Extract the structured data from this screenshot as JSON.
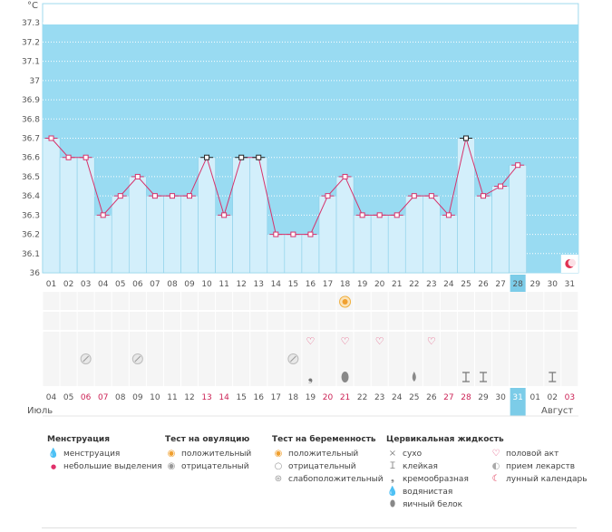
{
  "chart_data": {
    "type": "line",
    "unit_label": "°C",
    "ylim": [
      36,
      37.4
    ],
    "y_ticks": [
      "37.3",
      "37.2",
      "37.1",
      "37",
      "36.9",
      "36.8",
      "36.7",
      "36.6",
      "36.5",
      "36.4",
      "36.3",
      "36.2",
      "36.1",
      "36"
    ],
    "top_days": [
      "01",
      "02",
      "03",
      "04",
      "05",
      "06",
      "07",
      "08",
      "09",
      "10",
      "11",
      "12",
      "13",
      "14",
      "15",
      "16",
      "17",
      "18",
      "19",
      "20",
      "21",
      "22",
      "23",
      "24",
      "25",
      "26",
      "27",
      "28",
      "29",
      "30",
      "31"
    ],
    "current_day": "28",
    "temperatures": [
      36.7,
      36.6,
      36.6,
      36.3,
      36.4,
      36.5,
      36.4,
      36.4,
      36.4,
      36.6,
      36.3,
      36.6,
      36.6,
      36.2,
      36.2,
      36.2,
      36.4,
      36.5,
      36.3,
      36.3,
      36.3,
      36.4,
      36.4,
      36.3,
      36.7,
      36.4,
      36.45,
      36.56,
      null,
      null,
      null
    ],
    "marked_days": [
      "10",
      "12",
      "13",
      "25"
    ],
    "bottom_dates": [
      {
        "label": "04",
        "color": "#555555"
      },
      {
        "label": "05",
        "color": "#555555"
      },
      {
        "label": "06",
        "color": "#cc2255"
      },
      {
        "label": "07",
        "color": "#cc2255"
      },
      {
        "label": "08",
        "color": "#555555"
      },
      {
        "label": "09",
        "color": "#555555"
      },
      {
        "label": "10",
        "color": "#555555"
      },
      {
        "label": "11",
        "color": "#555555"
      },
      {
        "label": "12",
        "color": "#555555"
      },
      {
        "label": "13",
        "color": "#cc2255"
      },
      {
        "label": "14",
        "color": "#cc2255"
      },
      {
        "label": "15",
        "color": "#555555"
      },
      {
        "label": "16",
        "color": "#555555"
      },
      {
        "label": "17",
        "color": "#555555"
      },
      {
        "label": "18",
        "color": "#555555"
      },
      {
        "label": "19",
        "color": "#555555"
      },
      {
        "label": "20",
        "color": "#cc2255"
      },
      {
        "label": "21",
        "color": "#cc2255"
      },
      {
        "label": "22",
        "color": "#555555"
      },
      {
        "label": "23",
        "color": "#555555"
      },
      {
        "label": "24",
        "color": "#555555"
      },
      {
        "label": "25",
        "color": "#555555"
      },
      {
        "label": "26",
        "color": "#555555"
      },
      {
        "label": "27",
        "color": "#cc2255"
      },
      {
        "label": "28",
        "color": "#cc2255"
      },
      {
        "label": "29",
        "color": "#555555"
      },
      {
        "label": "30",
        "color": "#555555"
      },
      {
        "label": "31",
        "color": "#555555"
      },
      {
        "label": "01",
        "color": "#555555"
      },
      {
        "label": "02",
        "color": "#555555"
      },
      {
        "label": "03",
        "color": "#cc2255"
      }
    ],
    "current_bottom_index": 27,
    "month_left": "Июль",
    "month_right": "Август",
    "rows": {
      "ovulation_positive": [
        17
      ],
      "intercourse": [
        15,
        17,
        19,
        22
      ],
      "medication": [
        2,
        5,
        14
      ],
      "fluid_creamy": [
        15
      ],
      "fluid_eggwhite": [
        17
      ],
      "fluid_watery": [
        21
      ],
      "fluid_sticky": [
        24,
        25,
        29
      ],
      "lunar": [
        30
      ]
    },
    "colors": {
      "bg_blue": "#99dbf2",
      "bar_fill": "#d3effb",
      "bar_stroke": "#8acfe8",
      "line": "#d6336c",
      "current_day_bg": "#7ccce8",
      "grid_row": "#f5f5f5"
    }
  },
  "legend": {
    "menstruation": {
      "title": "Менструация",
      "items": [
        "менструация",
        "небольшие выделения"
      ]
    },
    "ovulation": {
      "title": "Тест на овуляцию",
      "items": [
        "положительный",
        "отрицательный"
      ]
    },
    "pregnancy": {
      "title": "Тест на беременность",
      "items": [
        "положительный",
        "отрицательный",
        "слабоположительный"
      ]
    },
    "cervical": {
      "title": "Цервикальная жидкость",
      "items": [
        "сухо",
        "клейкая",
        "кремообразная",
        "водянистая",
        "яичный белок"
      ]
    },
    "other": {
      "items": [
        "половой акт",
        "прием лекарств",
        "лунный календарь"
      ]
    },
    "icons": {
      "menstruation": "drop-icon",
      "spotting": "small-drop-icon",
      "positive": "sun-circle-icon",
      "negative": "grey-circle-icon",
      "faint": "swirl-circle-icon",
      "dry": "cross-icon",
      "sticky": "i-beam-icon",
      "creamy": "comma-icon",
      "watery": "drop-icon",
      "eggwhite": "egg-icon",
      "heart": "heart-icon",
      "pill": "pill-icon",
      "moon": "moon-icon"
    }
  }
}
